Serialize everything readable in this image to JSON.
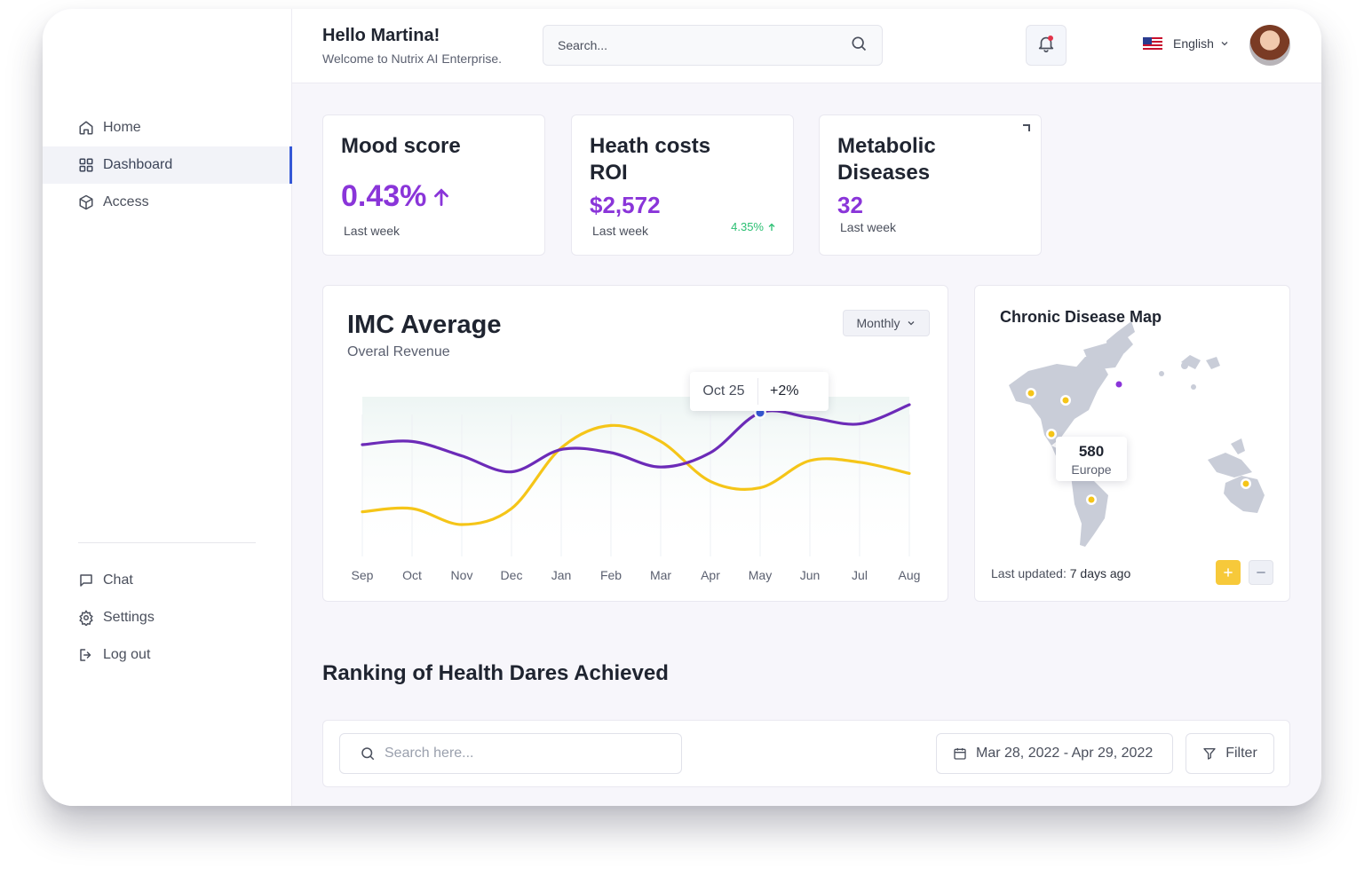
{
  "colors": {
    "accent_purple": "#8a35d9",
    "line_purple": "#6c2bb8",
    "line_yellow": "#f5c518",
    "positive_green": "#2bbf72",
    "active_indicator": "#3558d6"
  },
  "sidebar": {
    "items": [
      {
        "label": "Home",
        "icon": "home-icon"
      },
      {
        "label": "Dashboard",
        "icon": "grid-icon"
      },
      {
        "label": "Access",
        "icon": "cube-icon"
      }
    ],
    "bottom_items": [
      {
        "label": "Chat",
        "icon": "chat-icon"
      },
      {
        "label": "Settings",
        "icon": "gear-icon"
      },
      {
        "label": "Log out",
        "icon": "logout-icon"
      }
    ]
  },
  "header": {
    "greeting": "Hello Martina!",
    "welcome": "Welcome to Nutrix AI Enterprise.",
    "search_placeholder": "Search...",
    "language": "English"
  },
  "stats": [
    {
      "title": "Mood score",
      "value": "0.43%",
      "sub": "Last week"
    },
    {
      "title": "Heath costs ROI",
      "value": "$2,572",
      "sub": "Last week",
      "change": "4.35%"
    },
    {
      "title": "Metabolic Diseases",
      "value": "32",
      "sub": "Last week"
    }
  ],
  "imc": {
    "title": "IMC Average",
    "subtitle": "Overal Revenue",
    "period": "Monthly",
    "tooltip_date": "Oct 25",
    "tooltip_change": "+2%"
  },
  "chart_data": {
    "type": "line",
    "title": "IMC Average",
    "subtitle": "Overal Revenue",
    "x": [
      "Sep",
      "Oct",
      "Nov",
      "Dec",
      "Jan",
      "Feb",
      "Mar",
      "Apr",
      "May",
      "Jun",
      "Jul",
      "Aug"
    ],
    "ylim": [
      0,
      100
    ],
    "series": [
      {
        "name": "purple",
        "values": [
          70,
          72,
          63,
          53,
          67,
          65,
          56,
          65,
          90,
          87,
          83,
          95
        ]
      },
      {
        "name": "yellow",
        "values": [
          28,
          30,
          20,
          30,
          68,
          82,
          72,
          47,
          43,
          60,
          59,
          52
        ]
      }
    ],
    "highlight": {
      "x": "May",
      "label": "Oct 25",
      "change": "+2%"
    },
    "grid": true
  },
  "map": {
    "title": "Chronic Disease Map",
    "tooltip_value": "580",
    "tooltip_region": "Europe",
    "updated_label": "Last updated:",
    "updated_value": "7 days ago"
  },
  "ranking": {
    "title": "Ranking of Health Dares Achieved",
    "search_placeholder": "Search here...",
    "date_range": "Mar 28, 2022 - Apr 29, 2022",
    "filter_label": "Filter"
  }
}
